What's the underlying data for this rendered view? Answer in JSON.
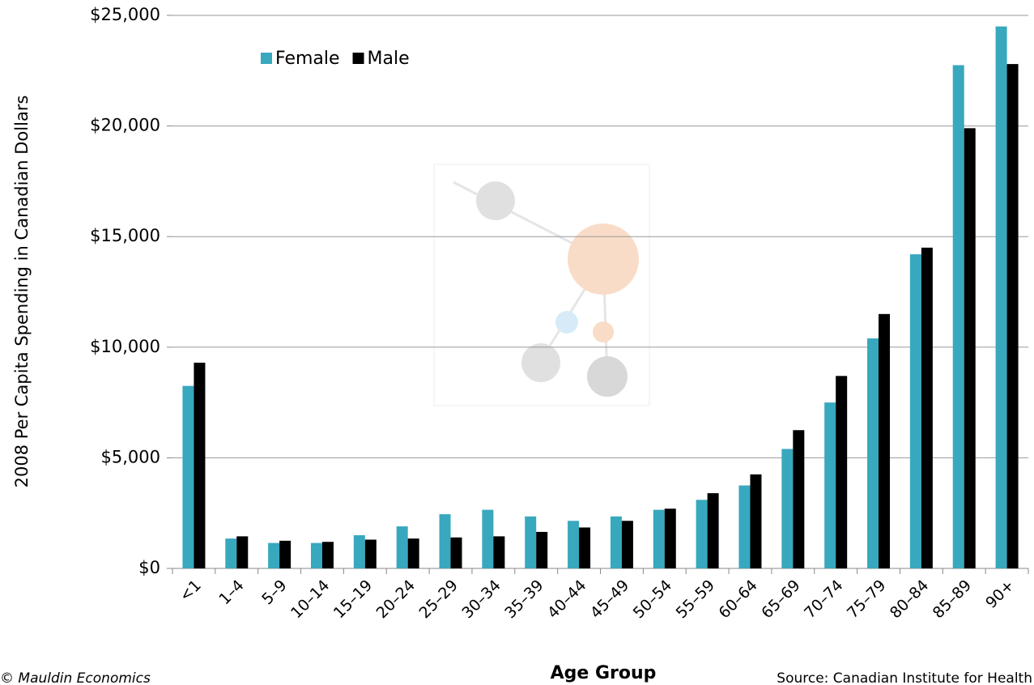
{
  "chart_data": {
    "type": "bar",
    "y_label": "2008 Per Capita Spending in Canadian Dollars",
    "x_label": "Age Group",
    "footer_left": "© Mauldin Economics",
    "footer_right": "Source: Canadian Institute for Health",
    "categories": [
      "<1",
      "1–4",
      "5–9",
      "10–14",
      "15–19",
      "20–24",
      "25–29",
      "30–34",
      "35–39",
      "40–44",
      "45–49",
      "50–54",
      "55–59",
      "60–64",
      "65–69",
      "70–74",
      "75–79",
      "80–84",
      "85–89",
      "90+"
    ],
    "series": [
      {
        "name": "Female",
        "color": "#38a8be",
        "values": [
          8250,
          1350,
          1150,
          1150,
          1500,
          1900,
          2450,
          2650,
          2350,
          2150,
          2350,
          2650,
          3100,
          3750,
          5400,
          7500,
          10400,
          14200,
          22750,
          24500
        ]
      },
      {
        "name": "Male",
        "color": "#000000",
        "values": [
          9300,
          1450,
          1250,
          1200,
          1300,
          1350,
          1400,
          1450,
          1650,
          1850,
          2150,
          2700,
          3400,
          4250,
          6250,
          8700,
          11500,
          14500,
          19900,
          22800
        ]
      }
    ],
    "ylim": [
      0,
      25000
    ],
    "yticks": [
      {
        "value": 0,
        "label": "$0"
      },
      {
        "value": 5000,
        "label": "$5,000"
      },
      {
        "value": 10000,
        "label": "$10,000"
      },
      {
        "value": 15000,
        "label": "$15,000"
      },
      {
        "value": 20000,
        "label": "$20,000"
      },
      {
        "value": 25000,
        "label": "$25,000"
      }
    ],
    "grid": true
  }
}
